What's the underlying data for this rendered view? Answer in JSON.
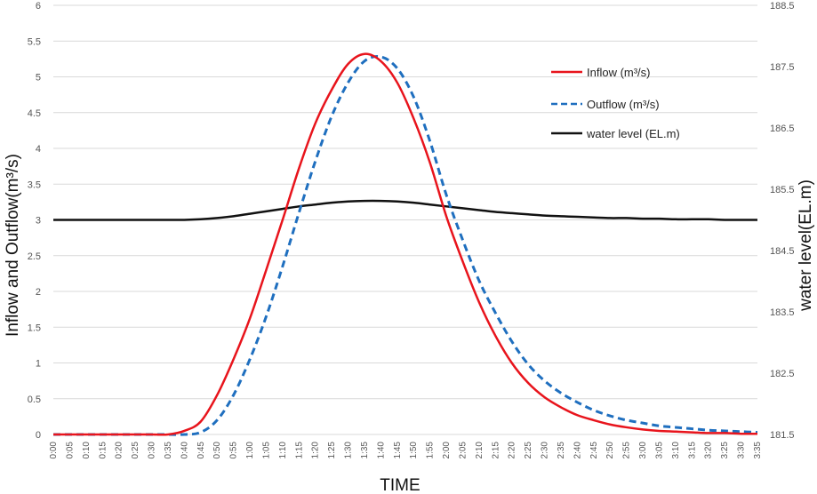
{
  "chart_data": {
    "type": "line",
    "title": "",
    "xlabel": "TIME",
    "ylabel": "Inflow and Outflow(m³/s)",
    "y2label": "water level(EL.m)",
    "ylim": [
      0,
      6
    ],
    "y2lim": [
      181.5,
      188.5
    ],
    "yticks": [
      0,
      0.5,
      1,
      1.5,
      2,
      2.5,
      3,
      3.5,
      4,
      4.5,
      5,
      5.5,
      6
    ],
    "y2ticks": [
      181.5,
      182.5,
      183.5,
      184.5,
      185.5,
      186.5,
      187.5,
      188.5
    ],
    "grid": true,
    "legend_position": "top-right",
    "categories": [
      "0:00",
      "0:05",
      "0:10",
      "0:15",
      "0:20",
      "0:25",
      "0:30",
      "0:35",
      "0:40",
      "0:45",
      "0:50",
      "0:55",
      "1:00",
      "1:05",
      "1:10",
      "1:15",
      "1:20",
      "1:25",
      "1:30",
      "1:35",
      "1:40",
      "1:45",
      "1:50",
      "1:55",
      "2:00",
      "2:05",
      "2:10",
      "2:15",
      "2:20",
      "2:25",
      "2:30",
      "2:35",
      "2:40",
      "2:45",
      "2:50",
      "2:55",
      "3:00",
      "3:05",
      "3:10",
      "3:15",
      "3:20",
      "3:25",
      "3:30",
      "3:35"
    ],
    "series": [
      {
        "name": "Inflow (m³/s)",
        "axis": "left",
        "color": "#e8141c",
        "style": "solid",
        "values": [
          0,
          0,
          0,
          0,
          0,
          0,
          0,
          0,
          0.05,
          0.18,
          0.55,
          1.05,
          1.62,
          2.3,
          3.0,
          3.72,
          4.35,
          4.82,
          5.18,
          5.32,
          5.22,
          4.92,
          4.42,
          3.8,
          3.05,
          2.42,
          1.85,
          1.38,
          1.0,
          0.72,
          0.52,
          0.38,
          0.27,
          0.2,
          0.14,
          0.1,
          0.07,
          0.05,
          0.04,
          0.03,
          0.02,
          0.02,
          0.01,
          0.01
        ]
      },
      {
        "name": "Outflow (m³/s)",
        "axis": "left",
        "color": "#1f6fbf",
        "style": "dashed",
        "values": [
          0,
          0,
          0,
          0,
          0,
          0,
          0,
          0,
          0,
          0.03,
          0.2,
          0.55,
          1.05,
          1.65,
          2.35,
          3.1,
          3.82,
          4.45,
          4.92,
          5.22,
          5.28,
          5.12,
          4.72,
          4.1,
          3.35,
          2.72,
          2.15,
          1.7,
          1.3,
          0.98,
          0.75,
          0.58,
          0.45,
          0.34,
          0.26,
          0.2,
          0.16,
          0.12,
          0.1,
          0.08,
          0.06,
          0.05,
          0.04,
          0.03
        ]
      },
      {
        "name": "water level (EL.m)",
        "axis": "right",
        "color": "#111111",
        "style": "solid",
        "values": [
          185.0,
          185.0,
          185.0,
          185.0,
          185.0,
          185.0,
          185.0,
          185.0,
          185.0,
          185.01,
          185.03,
          185.06,
          185.1,
          185.14,
          185.18,
          185.22,
          185.25,
          185.28,
          185.3,
          185.31,
          185.31,
          185.3,
          185.28,
          185.25,
          185.22,
          185.19,
          185.16,
          185.13,
          185.11,
          185.09,
          185.07,
          185.06,
          185.05,
          185.04,
          185.03,
          185.03,
          185.02,
          185.02,
          185.01,
          185.01,
          185.01,
          185.0,
          185.0,
          185.0
        ]
      }
    ]
  }
}
